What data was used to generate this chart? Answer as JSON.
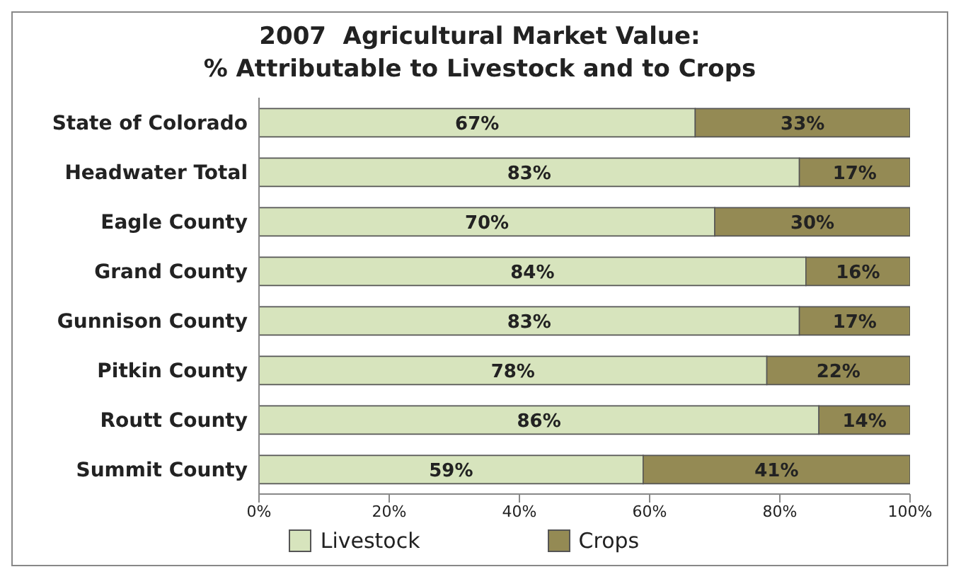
{
  "chart_data": {
    "type": "bar",
    "orientation": "horizontal",
    "stacked": true,
    "title": "2007  Agricultural Market Value:\n% Attributable to Livestock and to Crops",
    "categories": [
      "State of Colorado",
      "Headwater Total",
      "Eagle County",
      "Grand County",
      "Gunnison County",
      "Pitkin County",
      "Routt County",
      "Summit County"
    ],
    "series": [
      {
        "name": "Livestock",
        "color": "#d7e4bd",
        "values": [
          67,
          83,
          70,
          84,
          83,
          78,
          86,
          59
        ],
        "value_labels": [
          "67%",
          "83%",
          "70%",
          "84%",
          "83%",
          "78%",
          "86%",
          "59%"
        ]
      },
      {
        "name": "Crops",
        "color": "#948a54",
        "values": [
          33,
          17,
          30,
          16,
          17,
          22,
          14,
          41
        ],
        "value_labels": [
          "33%",
          "17%",
          "30%",
          "16%",
          "17%",
          "22%",
          "14%",
          "41%"
        ]
      }
    ],
    "xlim": [
      0,
      100
    ],
    "xticks": [
      {
        "value": 0,
        "label": "0%"
      },
      {
        "value": 20,
        "label": "20%"
      },
      {
        "value": 40,
        "label": "40%"
      },
      {
        "value": 60,
        "label": "60%"
      },
      {
        "value": 80,
        "label": "80%"
      },
      {
        "value": 100,
        "label": "100%"
      }
    ],
    "grid": false,
    "legend": "bottom"
  }
}
